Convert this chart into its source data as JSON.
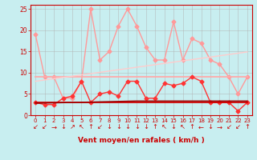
{
  "xlabel": "Vent moyen/en rafales ( km/h )",
  "bg_color": "#c8eef0",
  "grid_color": "#b0b0b0",
  "xlim": [
    -0.5,
    23.5
  ],
  "ylim": [
    0,
    26
  ],
  "yticks": [
    0,
    5,
    10,
    15,
    20,
    25
  ],
  "xticks": [
    0,
    1,
    2,
    3,
    4,
    5,
    6,
    7,
    8,
    9,
    10,
    11,
    12,
    13,
    14,
    15,
    16,
    17,
    18,
    19,
    20,
    21,
    22,
    23
  ],
  "series": [
    {
      "label": "rafales_light",
      "color": "#ff9999",
      "linewidth": 1.0,
      "marker": "D",
      "markersize": 2.5,
      "y": [
        19,
        9,
        9,
        4,
        4,
        8,
        25,
        13,
        15,
        21,
        25,
        21,
        16,
        13,
        13,
        22,
        13,
        18,
        17,
        13,
        12,
        9,
        5,
        9
      ]
    },
    {
      "label": "moy_light_flat",
      "color": "#ffaaaa",
      "linewidth": 1.3,
      "marker": null,
      "markersize": 0,
      "y": [
        9.0,
        9.0,
        9.0,
        9.0,
        9.0,
        9.0,
        9.0,
        9.0,
        9.0,
        9.0,
        9.0,
        9.0,
        9.0,
        9.0,
        9.0,
        9.0,
        9.0,
        9.0,
        9.0,
        9.0,
        9.0,
        9.0,
        9.0,
        9.0
      ]
    },
    {
      "label": "trend_light",
      "color": "#ffcccc",
      "linewidth": 1.0,
      "marker": null,
      "markersize": 0,
      "y": [
        8.0,
        8.3,
        8.6,
        8.9,
        9.2,
        9.5,
        9.8,
        10.1,
        10.4,
        10.7,
        11.0,
        11.3,
        11.6,
        11.9,
        12.2,
        12.5,
        12.8,
        13.1,
        13.4,
        13.7,
        14.0,
        14.3,
        14.6,
        14.9
      ]
    },
    {
      "label": "rafales_dark",
      "color": "#ff3333",
      "linewidth": 1.0,
      "marker": "D",
      "markersize": 2.5,
      "y": [
        3,
        2.5,
        2.5,
        4,
        4.5,
        8,
        3,
        5,
        5.5,
        4.5,
        8,
        8,
        4,
        4,
        7.5,
        7,
        7.5,
        9,
        8,
        3,
        3,
        3,
        1,
        3
      ]
    },
    {
      "label": "moy_dark_flat",
      "color": "#cc0000",
      "linewidth": 1.3,
      "marker": null,
      "markersize": 0,
      "y": [
        3.0,
        3.0,
        3.0,
        3.0,
        3.0,
        3.0,
        3.0,
        3.0,
        3.0,
        3.0,
        3.0,
        3.0,
        3.0,
        3.0,
        3.0,
        3.0,
        3.0,
        3.0,
        3.0,
        3.0,
        3.0,
        3.0,
        3.0,
        3.0
      ]
    },
    {
      "label": "trend_dark",
      "color": "#990000",
      "linewidth": 1.0,
      "marker": null,
      "markersize": 0,
      "y": [
        2.8,
        2.85,
        2.9,
        2.95,
        3.0,
        3.05,
        3.1,
        3.15,
        3.2,
        3.25,
        3.3,
        3.35,
        3.35,
        3.35,
        3.35,
        3.35,
        3.35,
        3.35,
        3.35,
        3.35,
        3.35,
        3.35,
        3.35,
        3.35
      ]
    }
  ],
  "wind_symbols": [
    "↙",
    "↙",
    "→",
    "↓",
    "↗",
    "↖",
    "↑",
    "↙",
    "↓",
    "↓",
    "↓",
    "↓",
    "↓",
    "↑",
    "↖",
    "↓",
    "↖",
    "↑",
    "←",
    "↓",
    "→",
    "↙",
    "↙",
    "↑"
  ],
  "arrow_color": "#cc0000",
  "arrow_fontsize": 6
}
